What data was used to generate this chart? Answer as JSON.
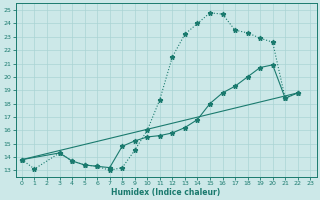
{
  "xlabel": "Humidex (Indice chaleur)",
  "bg_color": "#cce8e8",
  "line_color": "#1a7a6e",
  "grid_color": "#aad4d4",
  "xlim": [
    -0.5,
    23.5
  ],
  "ylim": [
    12.5,
    25.5
  ],
  "xticks": [
    0,
    1,
    2,
    3,
    4,
    5,
    6,
    7,
    8,
    9,
    10,
    11,
    12,
    13,
    14,
    15,
    16,
    17,
    18,
    19,
    20,
    21,
    22,
    23
  ],
  "yticks": [
    13,
    14,
    15,
    16,
    17,
    18,
    19,
    20,
    21,
    22,
    23,
    24,
    25
  ],
  "curve1_x": [
    0,
    1,
    3,
    4,
    5,
    6,
    7,
    8,
    9,
    10,
    11,
    12,
    13,
    14,
    15,
    16,
    17,
    18,
    19,
    20,
    21,
    22
  ],
  "curve1_y": [
    13.8,
    13.1,
    14.3,
    13.7,
    13.4,
    13.3,
    13.0,
    13.2,
    14.5,
    16.0,
    18.3,
    21.5,
    23.2,
    24.0,
    24.8,
    24.7,
    23.5,
    23.3,
    22.9,
    22.6,
    18.4,
    18.8
  ],
  "curve2_x": [
    0,
    3,
    4,
    5,
    6,
    7,
    8,
    9,
    10,
    11,
    12,
    13,
    14,
    15,
    16,
    17,
    18,
    19,
    20,
    21,
    22
  ],
  "curve2_y": [
    13.8,
    14.3,
    13.7,
    13.4,
    13.3,
    13.2,
    14.8,
    15.2,
    15.5,
    15.6,
    15.8,
    16.2,
    16.8,
    18.0,
    18.8,
    19.3,
    20.0,
    20.7,
    20.9,
    18.4,
    18.8
  ],
  "curve3_x": [
    0,
    22
  ],
  "curve3_y": [
    13.8,
    18.8
  ]
}
